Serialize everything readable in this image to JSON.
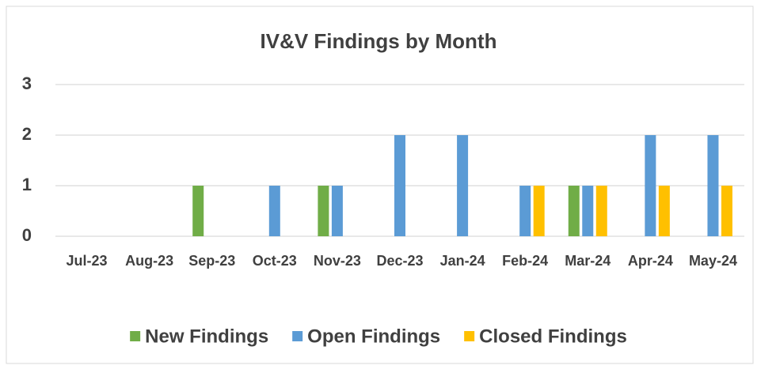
{
  "chart_data": {
    "type": "bar",
    "title": "IV&V Findings by Month",
    "categories": [
      "Jul-23",
      "Aug-23",
      "Sep-23",
      "Oct-23",
      "Nov-23",
      "Dec-23",
      "Jan-24",
      "Feb-24",
      "Mar-24",
      "Apr-24",
      "May-24"
    ],
    "series": [
      {
        "name": "New Findings",
        "color": "#70ad47",
        "values": [
          0,
          0,
          1,
          0,
          1,
          0,
          0,
          0,
          1,
          0,
          0
        ]
      },
      {
        "name": "Open Findings",
        "color": "#5b9bd5",
        "values": [
          0,
          0,
          0,
          1,
          1,
          2,
          2,
          1,
          1,
          2,
          2
        ]
      },
      {
        "name": "Closed Findings",
        "color": "#ffc000",
        "values": [
          0,
          0,
          0,
          0,
          0,
          0,
          0,
          1,
          1,
          1,
          1
        ]
      }
    ],
    "ylim": [
      0,
      3
    ],
    "yticks": [
      0,
      1,
      2,
      3
    ],
    "grid": true,
    "legend": "bottom"
  }
}
